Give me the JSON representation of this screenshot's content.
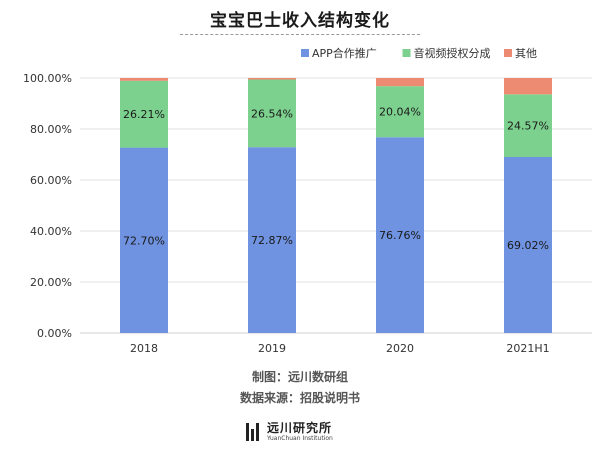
{
  "title": "宝宝巴士收入结构变化",
  "chart_data": {
    "type": "bar",
    "stacked": true,
    "categories": [
      "2018",
      "2019",
      "2020",
      "2021H1"
    ],
    "series": [
      {
        "name": "APP合作推广",
        "color": "#6f93e0",
        "values": [
          72.7,
          72.87,
          76.76,
          69.02
        ],
        "labels": [
          "72.70%",
          "72.87%",
          "76.76%",
          "69.02%"
        ]
      },
      {
        "name": "音视频授权分成",
        "color": "#7dd18f",
        "values": [
          26.21,
          26.54,
          20.04,
          24.57
        ],
        "labels": [
          "26.21%",
          "26.54%",
          "20.04%",
          "24.57%"
        ]
      },
      {
        "name": "其他",
        "color": "#ec8a72",
        "values": [
          1.09,
          0.59,
          3.2,
          6.41
        ],
        "labels": [
          "",
          "",
          "",
          ""
        ]
      }
    ],
    "ylim": [
      0,
      100
    ],
    "yticks": [
      "0.00%",
      "20.00%",
      "40.00%",
      "60.00%",
      "80.00%",
      "100.00%"
    ],
    "grid": true,
    "legend": "top-right"
  },
  "footer": {
    "made_by": "制图：远川数研组",
    "source": "数据来源：招股说明书"
  },
  "logo": {
    "name_cn": "远川研究所",
    "name_en": "YuanChuan Institution"
  }
}
